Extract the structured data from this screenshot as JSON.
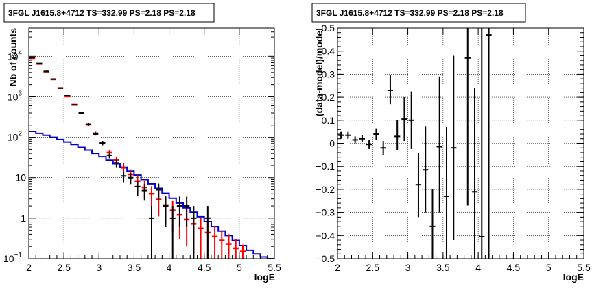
{
  "chart_data": [
    {
      "type": "line",
      "title": "3FGL J1615.8+4712 TS=332.99 PS=2.18 PS=2.18",
      "xlabel": "logE",
      "ylabel": "Nb of counts",
      "xlim": [
        2,
        5.5
      ],
      "ylim": [
        0.1,
        50000
      ],
      "yscale": "log",
      "grid": true,
      "xticks": [
        {
          "v": 2,
          "label": "2"
        },
        {
          "v": 2.5,
          "label": "2.5"
        },
        {
          "v": 3,
          "label": "3"
        },
        {
          "v": 3.5,
          "label": "3.5"
        },
        {
          "v": 4,
          "label": "4"
        },
        {
          "v": 4.5,
          "label": "4.5"
        },
        {
          "v": 5,
          "label": "5"
        },
        {
          "v": 5.5,
          "label": "5.5"
        }
      ],
      "yticks": [
        {
          "v": 0.1,
          "base": "10",
          "exp": "−1"
        },
        {
          "v": 1,
          "base": "1",
          "exp": ""
        },
        {
          "v": 10,
          "base": "10",
          "exp": ""
        },
        {
          "v": 100,
          "base": "10",
          "exp": "2"
        },
        {
          "v": 1000,
          "base": "10",
          "exp": "3"
        },
        {
          "v": 10000,
          "base": "10",
          "exp": "4"
        }
      ],
      "model_total": {
        "color": "#ff0000",
        "bin_width": 0.1,
        "x": [
          2.05,
          2.15,
          2.25,
          2.35,
          2.45,
          2.55,
          2.65,
          2.75,
          2.85,
          2.95,
          3.05,
          3.15,
          3.25,
          3.35,
          3.45,
          3.55,
          3.65,
          3.75,
          3.85,
          3.95,
          4.05,
          4.15,
          4.25,
          4.35,
          4.45,
          4.55,
          4.65,
          4.75,
          4.85,
          4.95,
          5.05
        ],
        "y": [
          9000,
          6500,
          4200,
          2700,
          1650,
          1020,
          640,
          400,
          205,
          125,
          72,
          42,
          27,
          17.5,
          12,
          8.2,
          5.7,
          4,
          2.9,
          2.1,
          1.55,
          1.2,
          0.92,
          0.72,
          0.56,
          0.44,
          0.35,
          0.28,
          0.23,
          0.18,
          0.15
        ],
        "ylow": [
          8800,
          6350,
          4100,
          2600,
          1600,
          980,
          610,
          380,
          190,
          113,
          63,
          35,
          21,
          12.5,
          8,
          5,
          3,
          1.9,
          1.1,
          0.7,
          0.45,
          0.3,
          0.2,
          0.13,
          0.1,
          0.1,
          0.1,
          0.1,
          0.1,
          0.1,
          0.1
        ],
        "yhigh": [
          9200,
          6650,
          4300,
          2800,
          1700,
          1060,
          670,
          420,
          220,
          137,
          81,
          49,
          33,
          22.5,
          16,
          11.5,
          8.4,
          6.1,
          4.7,
          3.5,
          2.65,
          2.1,
          1.65,
          1.3,
          1.02,
          0.8,
          0.63,
          0.5,
          0.4,
          0.31,
          0.22
        ]
      },
      "data": {
        "color": "#000000",
        "bin_width": 0.1,
        "x": [
          2.05,
          2.15,
          2.25,
          2.35,
          2.45,
          2.55,
          2.65,
          2.75,
          2.85,
          2.95,
          3.05,
          3.15,
          3.25,
          3.35,
          3.45,
          3.55,
          3.65,
          3.75,
          3.85,
          3.95,
          4.05,
          4.15,
          4.25,
          4.35,
          4.55
        ],
        "y": [
          9300,
          6700,
          4250,
          2750,
          1640,
          1060,
          630,
          400,
          210,
          120,
          72,
          36,
          23,
          11,
          10,
          6,
          4.8,
          1,
          5,
          2,
          1,
          2,
          2,
          1,
          1
        ],
        "ylow": [
          9100,
          6550,
          4150,
          2650,
          1590,
          1020,
          605,
          380,
          196,
          110,
          63,
          30,
          18,
          7.7,
          6.9,
          3.6,
          2.7,
          0.1,
          2.9,
          0.6,
          0.1,
          0.6,
          0.6,
          0.1,
          0.1
        ],
        "yhigh": [
          9500,
          6850,
          4350,
          2850,
          1690,
          1100,
          655,
          420,
          224,
          131,
          81,
          42,
          28,
          14.3,
          13.1,
          8.4,
          6.9,
          2,
          7.1,
          3.4,
          2,
          3.4,
          3.4,
          2,
          2
        ]
      },
      "component": {
        "color": "#0000cc",
        "edges": [
          2.0,
          2.1,
          2.2,
          2.3,
          2.4,
          2.5,
          2.6,
          2.7,
          2.8,
          2.9,
          3.0,
          3.1,
          3.2,
          3.3,
          3.4,
          3.5,
          3.6,
          3.7,
          3.8,
          3.9,
          4.0,
          4.1,
          4.2,
          4.3,
          4.4,
          4.5,
          4.6,
          4.7,
          4.8,
          4.9,
          5.0,
          5.1,
          5.2,
          5.3,
          5.4,
          5.5
        ],
        "y": [
          140,
          125,
          112,
          100,
          88,
          76,
          66,
          56,
          48,
          40,
          33,
          27,
          22,
          18,
          14.5,
          11.5,
          9,
          7,
          5.4,
          4.1,
          3.1,
          2.35,
          1.8,
          1.4,
          1.08,
          0.82,
          0.62,
          0.48,
          0.37,
          0.28,
          0.21,
          0.16,
          0.13,
          0.11,
          0.1
        ]
      }
    },
    {
      "type": "scatter",
      "title": "3FGL J1615.8+4712 TS=332.99 PS=2.18 PS=2.18",
      "xlabel": "logE",
      "ylabel": "(data-model)/model",
      "xlim": [
        2,
        5.5
      ],
      "ylim": [
        -0.5,
        0.5
      ],
      "grid": true,
      "xticks": [
        {
          "v": 2,
          "label": "2"
        },
        {
          "v": 2.5,
          "label": "2.5"
        },
        {
          "v": 3,
          "label": "3"
        },
        {
          "v": 3.5,
          "label": "3.5"
        },
        {
          "v": 4,
          "label": "4"
        },
        {
          "v": 4.5,
          "label": "4.5"
        },
        {
          "v": 5,
          "label": "5"
        },
        {
          "v": 5.5,
          "label": "5.5"
        }
      ],
      "yticks": [
        {
          "v": -0.5,
          "label": "−0.5"
        },
        {
          "v": -0.4,
          "label": "−0.4"
        },
        {
          "v": -0.3,
          "label": "−0.3"
        },
        {
          "v": -0.2,
          "label": "−0.2"
        },
        {
          "v": -0.1,
          "label": "−0.1"
        },
        {
          "v": 0,
          "label": "0"
        },
        {
          "v": 0.1,
          "label": "0.1"
        },
        {
          "v": 0.2,
          "label": "0.2"
        },
        {
          "v": 0.3,
          "label": "0.3"
        },
        {
          "v": 0.4,
          "label": "0.4"
        },
        {
          "v": 0.5,
          "label": "0.5"
        }
      ],
      "residuals": {
        "color": "#000000",
        "bin_width": 0.1,
        "x": [
          2.05,
          2.15,
          2.25,
          2.35,
          2.45,
          2.55,
          2.65,
          2.75,
          2.85,
          2.95,
          3.05,
          3.15,
          3.25,
          3.35,
          3.45,
          3.55,
          3.65,
          3.85,
          3.95,
          4.05,
          4.15
        ],
        "y": [
          0.035,
          0.035,
          0.015,
          0.02,
          -0.005,
          0.04,
          -0.02,
          0.23,
          0.03,
          0.105,
          0.1,
          -0.18,
          -0.115,
          -0.36,
          -0.015,
          -0.23,
          -0.02,
          0.37,
          -0.21,
          -0.405,
          0.47
        ],
        "ylow": [
          0.02,
          0.02,
          0.0,
          0.005,
          -0.025,
          0.015,
          -0.05,
          0.17,
          -0.03,
          0.01,
          -0.025,
          -0.32,
          -0.3,
          -0.5,
          -0.3,
          -0.5,
          -0.42,
          -0.27,
          -0.5,
          -0.5,
          -0.5
        ],
        "yhigh": [
          0.05,
          0.05,
          0.03,
          0.035,
          0.015,
          0.065,
          0.01,
          0.295,
          0.1,
          0.2,
          0.225,
          -0.04,
          0.075,
          -0.2,
          0.29,
          0.07,
          0.38,
          0.5,
          0.24,
          0.5,
          0.5
        ]
      }
    }
  ]
}
